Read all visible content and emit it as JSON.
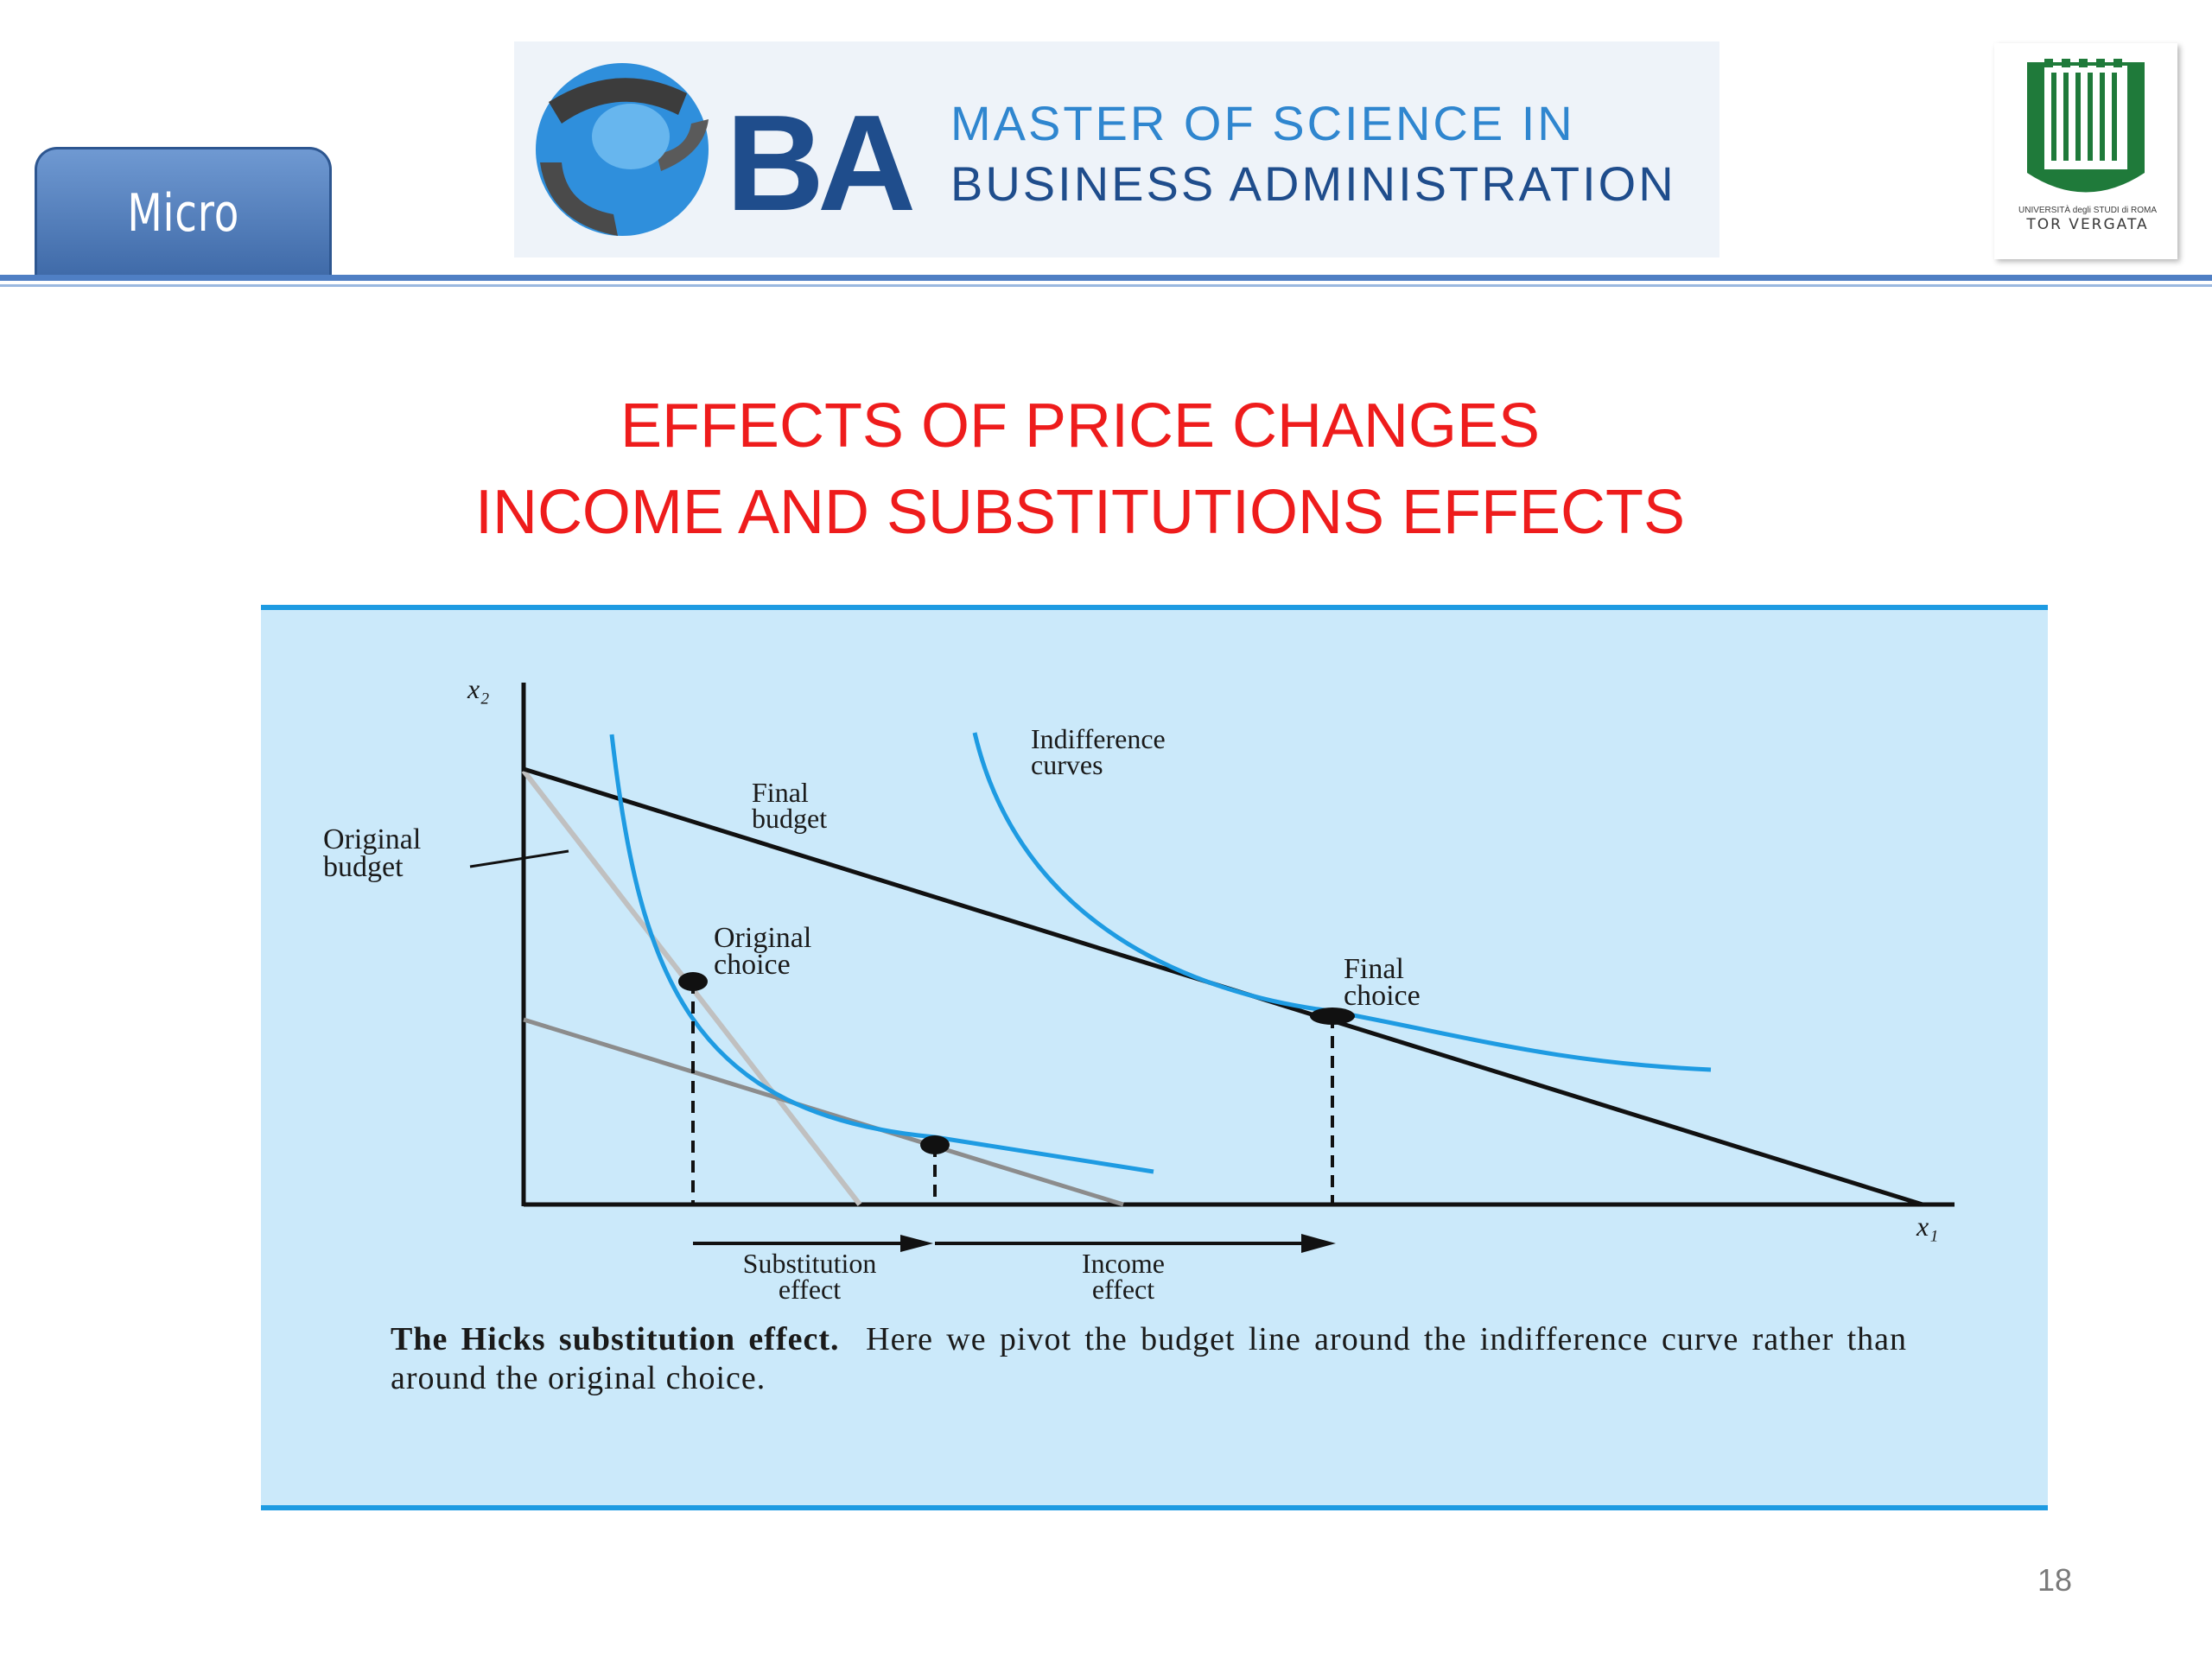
{
  "header": {
    "tab_label": "Micro",
    "logo": {
      "letters": "BA",
      "line1": "MASTER OF SCIENCE IN",
      "line2": "BUSINESS ADMINISTRATION"
    },
    "university": {
      "small_text": "UNIVERSITÀ degli STUDI di ROMA",
      "name": "TOR VERGATA"
    }
  },
  "title": {
    "line1": "EFFECTS OF PRICE CHANGES",
    "line2": "INCOME AND SUBSTITUTIONS EFFECTS"
  },
  "diagram": {
    "axis_y": "x₂",
    "axis_x": "x₁",
    "labels": {
      "indifference_1": "Indifference",
      "indifference_2": "curves",
      "final_budget_1": "Final",
      "final_budget_2": "budget",
      "original_budget_1": "Original",
      "original_budget_2": "budget",
      "original_choice_1": "Original",
      "original_choice_2": "choice",
      "final_choice_1": "Final",
      "final_choice_2": "choice",
      "substitution_1": "Substitution",
      "substitution_2": "effect",
      "income_1": "Income",
      "income_2": "effect"
    },
    "colors": {
      "indifference": "#1e9be2",
      "final_budget": "#111111",
      "original_budget": "#c0c0c0",
      "pivoted_budget": "#8c8c8c"
    }
  },
  "caption": {
    "bold": "The Hicks substitution effect.",
    "text": "Here we pivot the budget line around the indifference curve rather than around the original choice."
  },
  "page_number": "18"
}
